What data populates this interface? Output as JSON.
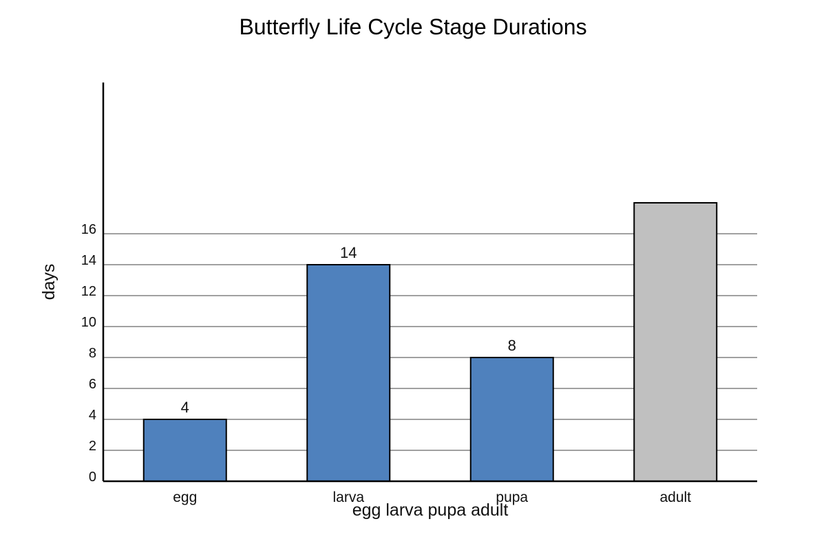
{
  "chart_data": {
    "type": "bar",
    "title": "Butterfly Life Cycle Stage Durations",
    "xlabel": "egg larva pupa adult",
    "ylabel": "days",
    "categories": [
      "egg",
      "larva",
      "pupa",
      "adult"
    ],
    "values": [
      4,
      14,
      8,
      18
    ],
    "data_labels": [
      "4",
      "14",
      "8",
      ""
    ],
    "yticks": [
      0,
      2,
      4,
      6,
      8,
      10,
      12,
      14,
      16
    ],
    "ylim": [
      0,
      26.3
    ],
    "grid": true,
    "legend": "none",
    "colors": {
      "bar": "#4f81bd",
      "highlight_bar": "#c0c0c0",
      "bar_outline": "#000000",
      "grid": "#808080",
      "axis": "#000000"
    },
    "highlight_index": 3
  }
}
